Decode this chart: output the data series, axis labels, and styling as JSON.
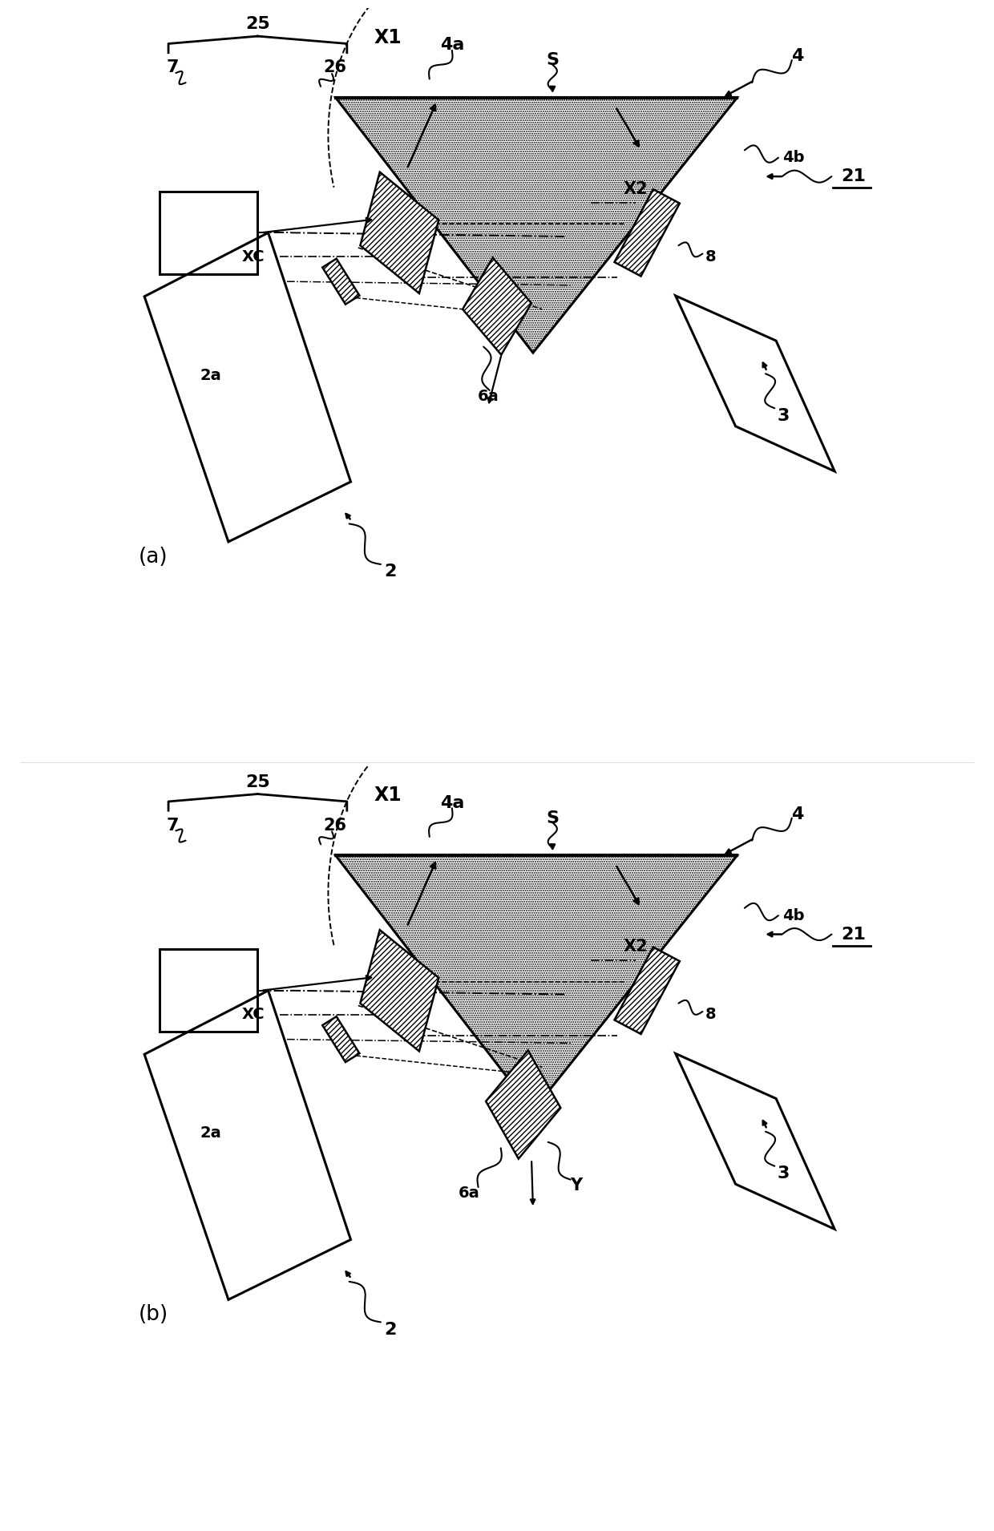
{
  "fig_width": 12.4,
  "fig_height": 19.1,
  "bg_color": "#ffffff",
  "line_color": "#000000",
  "label_fontsize": 14,
  "panel_label_fontsize": 18,
  "panels": [
    "(a)",
    "(b)"
  ],
  "labels": {
    "S": "S",
    "4": "4",
    "4a": "4a",
    "4b": "4b",
    "21": "21",
    "2": "2",
    "2a": "2a",
    "3": "3",
    "6a": "6a",
    "7": "7",
    "8": "8",
    "25": "25",
    "26": "26",
    "XC": "XC",
    "X1": "X1",
    "X2": "X2",
    "Y": "Y"
  }
}
